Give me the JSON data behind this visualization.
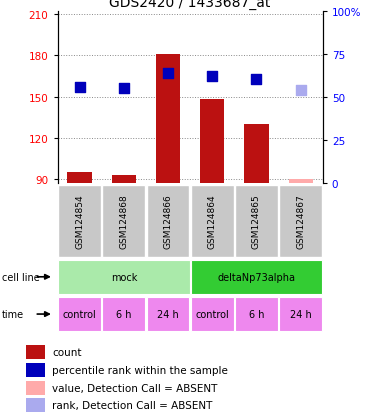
{
  "title": "GDS2420 / 1433687_at",
  "samples": [
    "GSM124854",
    "GSM124868",
    "GSM124866",
    "GSM124864",
    "GSM124865",
    "GSM124867"
  ],
  "red_bars": [
    95,
    93,
    181,
    148,
    130,
    90
  ],
  "red_bar_absent": [
    false,
    false,
    false,
    false,
    false,
    true
  ],
  "blue_dots": [
    157,
    156,
    167,
    165,
    163,
    155
  ],
  "blue_dot_absent": [
    false,
    false,
    false,
    false,
    false,
    true
  ],
  "ylim_left": [
    87,
    212
  ],
  "ylim_right": [
    0,
    100
  ],
  "yticks_left": [
    90,
    120,
    150,
    180,
    210
  ],
  "yticks_right": [
    0,
    25,
    50,
    75,
    100
  ],
  "cell_line_groups": [
    {
      "label": "mock",
      "start": 0,
      "end": 3,
      "color": "#AAEAAA"
    },
    {
      "label": "deltaNp73alpha",
      "start": 3,
      "end": 6,
      "color": "#33CC33"
    }
  ],
  "time_labels": [
    "control",
    "6 h",
    "24 h",
    "control",
    "6 h",
    "24 h"
  ],
  "time_color": "#EE88EE",
  "grid_color": "#888888",
  "bar_color_normal": "#BB1111",
  "bar_color_absent": "#FFAAAA",
  "dot_color_normal": "#0000BB",
  "dot_color_absent": "#AAAAEE",
  "sample_box_color": "#C8C8C8",
  "bar_width": 0.55,
  "dot_size": 45,
  "title_fontsize": 10,
  "label_fontsize": 7,
  "tick_fontsize": 7.5,
  "legend_fontsize": 7.5,
  "sample_fontsize": 6.5
}
